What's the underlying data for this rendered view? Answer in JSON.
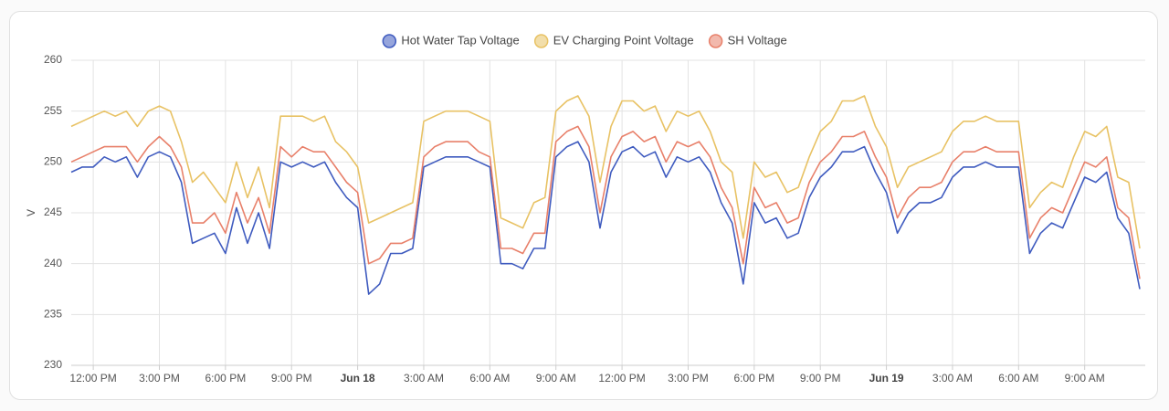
{
  "chart_data": {
    "type": "line",
    "y_label": "V",
    "legend": "top",
    "grid": true,
    "ylim": [
      230,
      260
    ],
    "yticks": [
      230,
      235,
      240,
      245,
      250,
      255,
      260
    ],
    "categories": [
      null,
      null,
      "12:00 PM",
      null,
      null,
      null,
      null,
      null,
      "3:00 PM",
      null,
      null,
      null,
      null,
      null,
      "6:00 PM",
      null,
      null,
      null,
      null,
      null,
      "9:00 PM",
      null,
      null,
      null,
      null,
      null,
      "Jun 18",
      null,
      null,
      null,
      null,
      null,
      "3:00 AM",
      null,
      null,
      null,
      null,
      null,
      "6:00 AM",
      null,
      null,
      null,
      null,
      null,
      "9:00 AM",
      null,
      null,
      null,
      null,
      null,
      "12:00 PM",
      null,
      null,
      null,
      null,
      null,
      "3:00 PM",
      null,
      null,
      null,
      null,
      null,
      "6:00 PM",
      null,
      null,
      null,
      null,
      null,
      "9:00 PM",
      null,
      null,
      null,
      null,
      null,
      "Jun 19",
      null,
      null,
      null,
      null,
      null,
      "3:00 AM",
      null,
      null,
      null,
      null,
      null,
      "6:00 AM",
      null,
      null,
      null,
      null,
      null,
      "9:00 AM",
      null,
      null,
      null,
      null,
      null
    ],
    "series": [
      {
        "name": "Hot Water Tap Voltage",
        "color": "#3f5bbf",
        "values": [
          249,
          249.5,
          249.5,
          250.5,
          250,
          250.5,
          248.5,
          250.5,
          251,
          250.5,
          248,
          242,
          242.5,
          243,
          241,
          245.5,
          242,
          245,
          241.5,
          250,
          249.5,
          250,
          249.5,
          250,
          248,
          246.5,
          245.5,
          237,
          238,
          241,
          241,
          241.5,
          249.5,
          250,
          250.5,
          250.5,
          250.5,
          250,
          249.5,
          240,
          240,
          239.5,
          241.5,
          241.5,
          250.5,
          251.5,
          252,
          250,
          243.5,
          249,
          251,
          251.5,
          250.5,
          251,
          248.5,
          250.5,
          250,
          250.5,
          249,
          246,
          244,
          238,
          246,
          244,
          244.5,
          242.5,
          243,
          246.5,
          248.5,
          249.5,
          251,
          251,
          251.5,
          249,
          247,
          243,
          245,
          246,
          246,
          246.5,
          248.5,
          249.5,
          249.5,
          250,
          249.5,
          249.5,
          249.5,
          241,
          243,
          244,
          243.5,
          246,
          248.5,
          248,
          249,
          244.5,
          243,
          237.5
        ]
      },
      {
        "name": "EV Charging Point Voltage",
        "color": "#e8c264",
        "values": [
          253.5,
          254,
          254.5,
          255,
          254.5,
          255,
          253.5,
          255,
          255.5,
          255,
          252,
          248,
          249,
          247.5,
          246,
          250,
          246.5,
          249.5,
          245.5,
          254.5,
          254.5,
          254.5,
          254,
          254.5,
          252,
          251,
          249.5,
          244,
          244.5,
          245,
          245.5,
          246,
          254,
          254.5,
          255,
          255,
          255,
          254.5,
          254,
          244.5,
          244,
          243.5,
          246,
          246.5,
          255,
          256,
          256.5,
          254.5,
          248,
          253.5,
          256,
          256,
          255,
          255.5,
          253,
          255,
          254.5,
          255,
          253,
          250,
          249,
          242.5,
          250,
          248.5,
          249,
          247,
          247.5,
          250.5,
          253,
          254,
          256,
          256,
          256.5,
          253.5,
          251.5,
          247.5,
          249.5,
          250,
          250.5,
          251,
          253,
          254,
          254,
          254.5,
          254,
          254,
          254,
          245.5,
          247,
          248,
          247.5,
          250.5,
          253,
          252.5,
          253.5,
          248.5,
          248,
          241.5
        ]
      },
      {
        "name": "SH Voltage",
        "color": "#e8806a",
        "values": [
          250,
          250.5,
          251,
          251.5,
          251.5,
          251.5,
          250,
          251.5,
          252.5,
          251.5,
          249.5,
          244,
          244,
          245,
          243,
          247,
          244,
          246.5,
          243,
          251.5,
          250.5,
          251.5,
          251,
          251,
          249.5,
          248,
          247,
          240,
          240.5,
          242,
          242,
          242.5,
          250.5,
          251.5,
          252,
          252,
          252,
          251,
          250.5,
          241.5,
          241.5,
          241,
          243,
          243,
          252,
          253,
          253.5,
          251.5,
          245,
          250.5,
          252.5,
          253,
          252,
          252.5,
          250,
          252,
          251.5,
          252,
          250.5,
          247.5,
          245.5,
          240,
          247.5,
          245.5,
          246,
          244,
          244.5,
          248,
          250,
          251,
          252.5,
          252.5,
          253,
          250.5,
          248.5,
          244.5,
          246.5,
          247.5,
          247.5,
          248,
          250,
          251,
          251,
          251.5,
          251,
          251,
          251,
          242.5,
          244.5,
          245.5,
          245,
          247.5,
          250,
          249.5,
          250.5,
          245.5,
          244.5,
          238.5
        ]
      }
    ]
  }
}
